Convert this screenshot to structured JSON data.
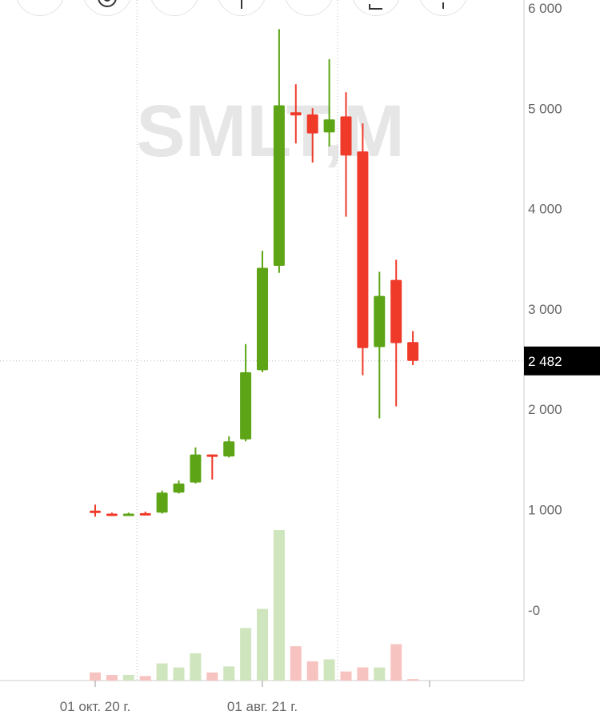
{
  "toolbar": {
    "buttons": [
      {
        "name": "tool-button-1",
        "icon": "circle-icon"
      },
      {
        "name": "tool-button-gear",
        "icon": "gear-icon"
      },
      {
        "name": "tool-button-3",
        "icon": "circle-icon"
      },
      {
        "name": "tool-button-4",
        "icon": "line-icon"
      },
      {
        "name": "tool-button-5",
        "icon": "circle-icon"
      },
      {
        "name": "tool-button-6",
        "icon": "square-icon"
      },
      {
        "name": "tool-button-7",
        "icon": "line-icon"
      }
    ]
  },
  "chart_data": {
    "type": "candlestick",
    "watermark": "SMLT,M",
    "colors": {
      "up": "#5da516",
      "down": "#ef3a2a",
      "volume_up": "#cfe5bd",
      "volume_down": "#f7c3c0",
      "grid": "#bbbbbb",
      "price_tag_bg": "#000000",
      "price_tag_text": "#ffffff"
    },
    "y_axis": {
      "ylim": [
        -700,
        6100
      ],
      "ticks": [
        {
          "value": 6000,
          "label": "6 000"
        },
        {
          "value": 5000,
          "label": "5 000"
        },
        {
          "value": 4000,
          "label": "4 000"
        },
        {
          "value": 3000,
          "label": "3 000"
        },
        {
          "value": 2000,
          "label": "2 000"
        },
        {
          "value": 1000,
          "label": "1 000"
        },
        {
          "value": 0,
          "label": "-0"
        }
      ]
    },
    "x_axis": {
      "ticks": [
        {
          "index": 0,
          "label": "01 окт. 20 г."
        },
        {
          "index": 10,
          "label": "01 авг. 21 г."
        },
        {
          "index": 20,
          "label": ""
        }
      ]
    },
    "vertical_grid_index": [
      3,
      15
    ],
    "last_price": {
      "value": 2482,
      "label": "2 482"
    },
    "candles": [
      {
        "open": 990,
        "high": 1050,
        "low": 930,
        "close": 970,
        "volume": 80
      },
      {
        "open": 960,
        "high": 970,
        "low": 945,
        "close": 955,
        "volume": 55
      },
      {
        "open": 945,
        "high": 970,
        "low": 940,
        "close": 960,
        "volume": 55
      },
      {
        "open": 965,
        "high": 980,
        "low": 955,
        "close": 960,
        "volume": 45
      },
      {
        "open": 970,
        "high": 1190,
        "low": 960,
        "close": 1170,
        "volume": 170
      },
      {
        "open": 1170,
        "high": 1290,
        "low": 1160,
        "close": 1260,
        "volume": 130
      },
      {
        "open": 1270,
        "high": 1620,
        "low": 1260,
        "close": 1550,
        "volume": 270
      },
      {
        "open": 1550,
        "high": 1550,
        "low": 1300,
        "close": 1530,
        "volume": 80
      },
      {
        "open": 1530,
        "high": 1730,
        "low": 1520,
        "close": 1680,
        "volume": 140
      },
      {
        "open": 1700,
        "high": 2650,
        "low": 1680,
        "close": 2370,
        "volume": 520
      },
      {
        "open": 2390,
        "high": 3580,
        "low": 2370,
        "close": 3410,
        "volume": 710
      },
      {
        "open": 3430,
        "high": 5790,
        "low": 3360,
        "close": 5030,
        "volume": 1490
      },
      {
        "open": 4960,
        "high": 5240,
        "low": 4650,
        "close": 4930,
        "volume": 340
      },
      {
        "open": 4940,
        "high": 5000,
        "low": 4460,
        "close": 4750,
        "volume": 190
      },
      {
        "open": 4760,
        "high": 5490,
        "low": 4620,
        "close": 4890,
        "volume": 210
      },
      {
        "open": 4920,
        "high": 5160,
        "low": 3920,
        "close": 4530,
        "volume": 90
      },
      {
        "open": 4570,
        "high": 4850,
        "low": 2340,
        "close": 2610,
        "volume": 130
      },
      {
        "open": 2620,
        "high": 3370,
        "low": 1910,
        "close": 3130,
        "volume": 130
      },
      {
        "open": 3290,
        "high": 3490,
        "low": 2030,
        "close": 2660,
        "volume": 360
      },
      {
        "open": 2670,
        "high": 2780,
        "low": 2440,
        "close": 2482,
        "volume": 15
      }
    ]
  }
}
